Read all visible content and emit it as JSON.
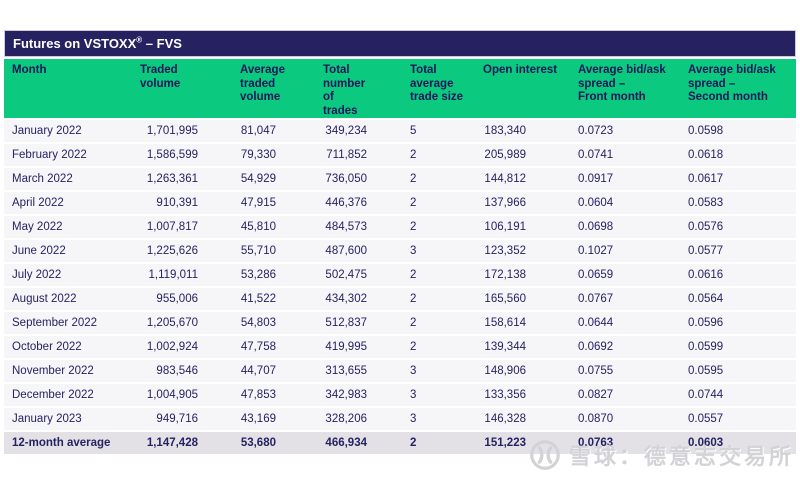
{
  "title": {
    "prefix": "Futures on VSTOXX",
    "registered": "®",
    "suffix": " – FVS"
  },
  "table": {
    "columns": [
      "Month",
      "Traded\nvolume",
      "Average\ntraded\nvolume",
      "Total\nnumber\nof trades",
      "Total\naverage\ntrade size",
      "Open interest",
      "Average bid/ask\nspread –\nFront month",
      "Average bid/ask\nspread –\nSecond month"
    ],
    "rows": [
      [
        "January 2022",
        "1,701,995",
        "81,047",
        "349,234",
        "5",
        "183,340",
        "0.0723",
        "0.0598"
      ],
      [
        "February 2022",
        "1,586,599",
        "79,330",
        "711,852",
        "2",
        "205,989",
        "0.0741",
        "0.0618"
      ],
      [
        "March 2022",
        "1,263,361",
        "54,929",
        "736,050",
        "2",
        "144,812",
        "0.0917",
        "0.0617"
      ],
      [
        "April 2022",
        "910,391",
        "47,915",
        "446,376",
        "2",
        "137,966",
        "0.0604",
        "0.0583"
      ],
      [
        "May 2022",
        "1,007,817",
        "45,810",
        "484,573",
        "2",
        "106,191",
        "0.0698",
        "0.0576"
      ],
      [
        "June 2022",
        "1,225,626",
        "55,710",
        "487,600",
        "3",
        "123,352",
        "0.1027",
        "0.0577"
      ],
      [
        "July 2022",
        "1,119,011",
        "53,286",
        "502,475",
        "2",
        "172,138",
        "0.0659",
        "0.0616"
      ],
      [
        "August 2022",
        "955,006",
        "41,522",
        "434,302",
        "2",
        "165,560",
        "0.0767",
        "0.0564"
      ],
      [
        "September 2022",
        "1,205,670",
        "54,803",
        "512,837",
        "2",
        "158,614",
        "0.0644",
        "0.0596"
      ],
      [
        "October 2022",
        "1,002,924",
        "47,758",
        "419,995",
        "2",
        "139,344",
        "0.0692",
        "0.0599"
      ],
      [
        "November 2022",
        "983,546",
        "44,707",
        "313,655",
        "3",
        "148,906",
        "0.0755",
        "0.0595"
      ],
      [
        "December 2022",
        "1,004,905",
        "47,853",
        "342,983",
        "3",
        "133,356",
        "0.0827",
        "0.0744"
      ],
      [
        "January 2023",
        "949,716",
        "43,169",
        "328,206",
        "3",
        "146,328",
        "0.0870",
        "0.0557"
      ]
    ],
    "summary_row": [
      "12-month average",
      "1,147,428",
      "53,680",
      "466,934",
      "2",
      "151,223",
      "0.0763",
      "0.0603"
    ]
  },
  "watermark": {
    "logo": "xueqiu-snowball-logo",
    "text": "雪球：德意志交易所"
  },
  "colors": {
    "title_bar": "#262160",
    "header_green": "#0bca7f",
    "text_navy": "#262262",
    "row_bg": "#f6f5f7",
    "summary_row_bg": "#e3e1e6",
    "watermark_gray": "#d3d2d6"
  }
}
